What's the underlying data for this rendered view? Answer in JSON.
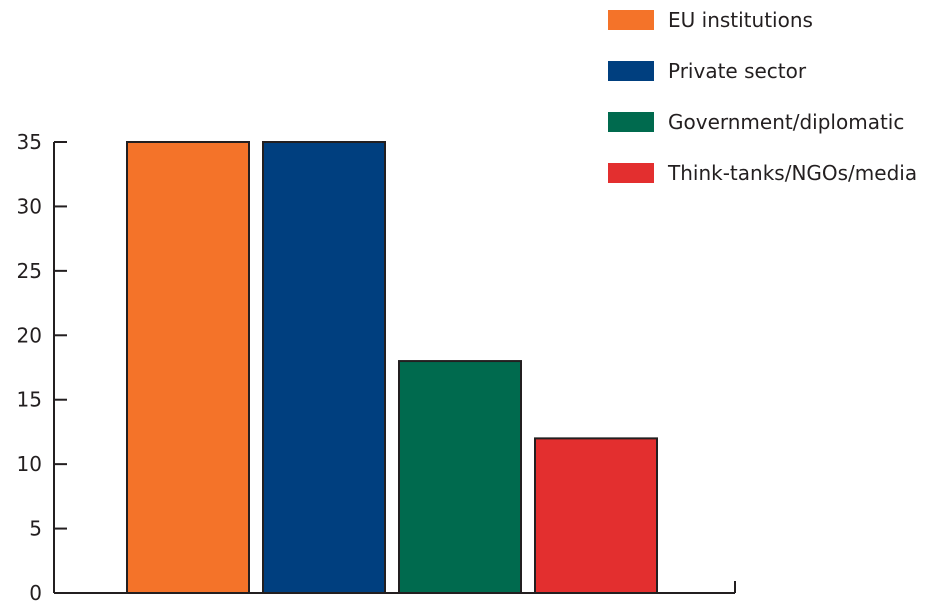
{
  "chart_data": {
    "type": "bar",
    "title": "",
    "xlabel": "",
    "ylabel": "",
    "ylim": [
      0,
      35
    ],
    "yticks": [
      0,
      5,
      10,
      15,
      20,
      25,
      30,
      35
    ],
    "grid": false,
    "legend_position": "top-right",
    "series": [
      {
        "name": "EU institutions",
        "value": 35,
        "color": "#f47329"
      },
      {
        "name": "Private sector",
        "value": 35,
        "color": "#003f7f"
      },
      {
        "name": "Government/diplomatic",
        "value": 18,
        "color": "#006a4e"
      },
      {
        "name": "Think-tanks/NGOs/media",
        "value": 12,
        "color": "#e32f2f"
      }
    ]
  }
}
